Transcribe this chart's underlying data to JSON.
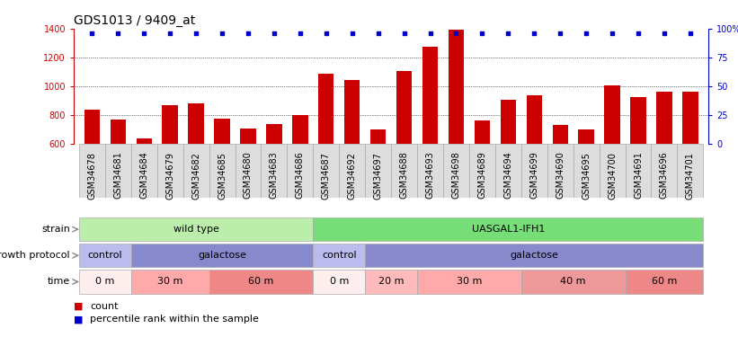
{
  "title": "GDS1013 / 9409_at",
  "samples": [
    "GSM34678",
    "GSM34681",
    "GSM34684",
    "GSM34679",
    "GSM34682",
    "GSM34685",
    "GSM34680",
    "GSM34683",
    "GSM34686",
    "GSM34687",
    "GSM34692",
    "GSM34697",
    "GSM34688",
    "GSM34693",
    "GSM34698",
    "GSM34689",
    "GSM34694",
    "GSM34699",
    "GSM34690",
    "GSM34695",
    "GSM34700",
    "GSM34691",
    "GSM34696",
    "GSM34701"
  ],
  "counts": [
    835,
    770,
    635,
    865,
    880,
    775,
    705,
    735,
    800,
    1085,
    1045,
    695,
    1105,
    1275,
    1395,
    760,
    905,
    940,
    730,
    695,
    1005,
    925,
    960,
    965
  ],
  "ylim_left": [
    600,
    1400
  ],
  "ylim_right": [
    0,
    100
  ],
  "bar_color": "#cc0000",
  "dot_color": "#0000cc",
  "strain_labels": [
    {
      "label": "wild type",
      "start": 0,
      "end": 9,
      "color": "#bbeeaa"
    },
    {
      "label": "UASGAL1-IFH1",
      "start": 9,
      "end": 24,
      "color": "#77dd77"
    }
  ],
  "growth_protocol_labels": [
    {
      "label": "control",
      "start": 0,
      "end": 2,
      "color": "#bbbbee"
    },
    {
      "label": "galactose",
      "start": 2,
      "end": 9,
      "color": "#8888cc"
    },
    {
      "label": "control",
      "start": 9,
      "end": 11,
      "color": "#bbbbee"
    },
    {
      "label": "galactose",
      "start": 11,
      "end": 24,
      "color": "#8888cc"
    }
  ],
  "time_labels": [
    {
      "label": "0 m",
      "start": 0,
      "end": 2,
      "color": "#ffeeee"
    },
    {
      "label": "30 m",
      "start": 2,
      "end": 5,
      "color": "#ffaaaa"
    },
    {
      "label": "60 m",
      "start": 5,
      "end": 9,
      "color": "#ee8888"
    },
    {
      "label": "0 m",
      "start": 9,
      "end": 11,
      "color": "#ffeeee"
    },
    {
      "label": "20 m",
      "start": 11,
      "end": 13,
      "color": "#ffbbbb"
    },
    {
      "label": "30 m",
      "start": 13,
      "end": 17,
      "color": "#ffaaaa"
    },
    {
      "label": "40 m",
      "start": 17,
      "end": 21,
      "color": "#ee9999"
    },
    {
      "label": "60 m",
      "start": 21,
      "end": 24,
      "color": "#ee8888"
    }
  ],
  "background_color": "#ffffff",
  "title_fontsize": 10,
  "tick_fontsize": 7,
  "label_fontsize": 8,
  "row_label_fontsize": 8
}
